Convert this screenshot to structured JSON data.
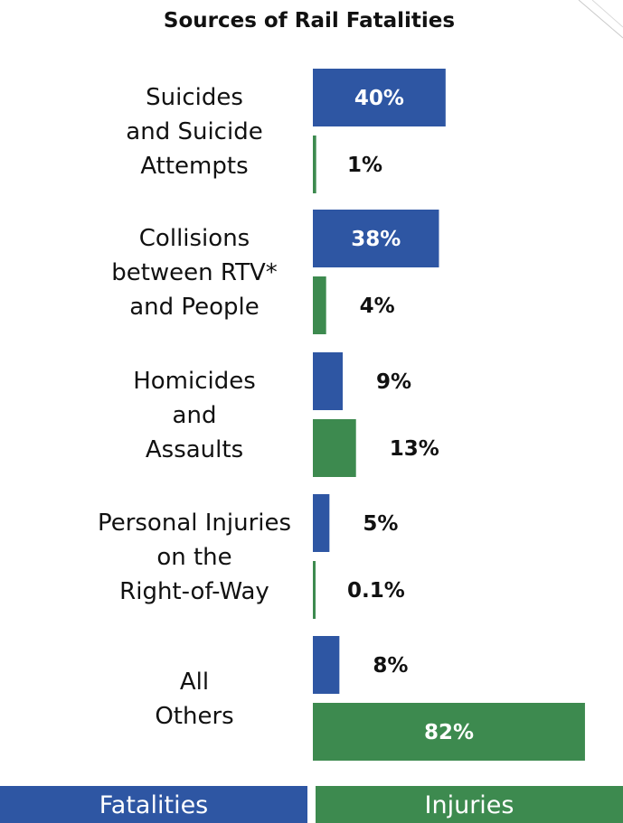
{
  "chart_data": {
    "type": "bar",
    "orientation": "horizontal",
    "title": "Sources of Rail Fatalities",
    "categories": [
      [
        "Suicides",
        "and Suicide",
        "Attempts"
      ],
      [
        "Collisions",
        "between RTV*",
        "and People"
      ],
      [
        "Homicides",
        "and",
        "Assaults"
      ],
      [
        "Personal Injuries",
        "on the",
        "Right-of-Way"
      ],
      [
        "All",
        "Others"
      ]
    ],
    "series": [
      {
        "name": "Fatalities",
        "color": "#2e56a3",
        "values": [
          40,
          38,
          9,
          5,
          8
        ],
        "labels": [
          "40%",
          "38%",
          "9%",
          "5%",
          "8%"
        ]
      },
      {
        "name": "Injuries",
        "color": "#3d8a4f",
        "values": [
          1,
          4,
          13,
          0.1,
          82
        ],
        "labels": [
          "1%",
          "4%",
          "13%",
          "0.1%",
          "82%"
        ]
      }
    ],
    "xlim": [
      0,
      100
    ],
    "grid": false,
    "legend": "bottom"
  }
}
